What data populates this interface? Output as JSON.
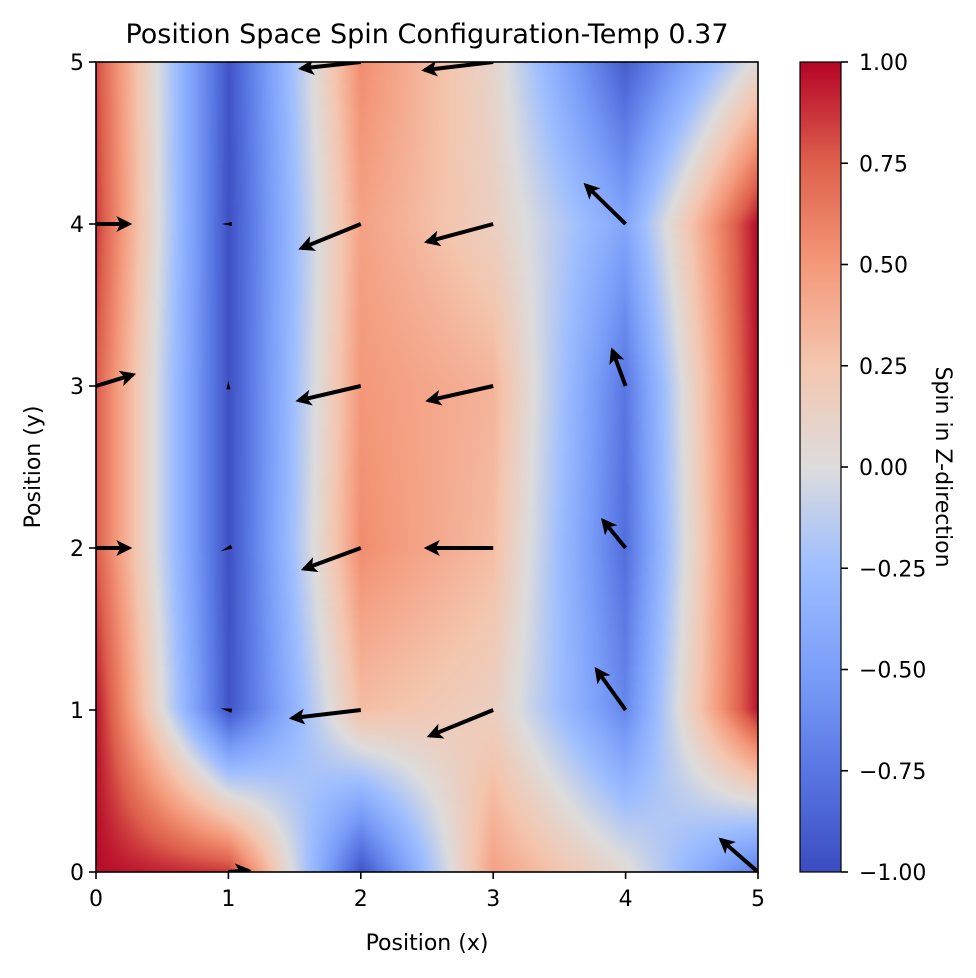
{
  "chart_data": {
    "type": "heatmap",
    "subtype": "heatmap-with-quiver",
    "title": "Position Space Spin Configuration-Temp 0.37",
    "xlabel": "Position (x)",
    "ylabel": "Position (y)",
    "xlim": [
      0,
      5
    ],
    "ylim": [
      0,
      5
    ],
    "xticks": [
      0,
      1,
      2,
      3,
      4,
      5
    ],
    "yticks": [
      0,
      1,
      2,
      3,
      4,
      5
    ],
    "xtick_labels": [
      "0",
      "1",
      "2",
      "3",
      "4",
      "5"
    ],
    "ytick_labels": [
      "0",
      "1",
      "2",
      "3",
      "4",
      "5"
    ],
    "colormap": "coolwarm",
    "interpolation": "bilinear",
    "colorbar": {
      "label": "Spin in Z-direction",
      "range": [
        -1.0,
        1.0
      ],
      "ticks": [
        1.0,
        0.75,
        0.5,
        0.25,
        0.0,
        -0.25,
        -0.5,
        -0.75,
        -1.0
      ],
      "tick_labels": [
        "1.00",
        "0.75",
        "0.50",
        "0.25",
        "0.00",
        "−0.25",
        "−0.50",
        "−0.75",
        "−1.00"
      ],
      "placement": "right"
    },
    "grid_x": [
      0,
      1,
      2,
      3,
      4,
      5
    ],
    "grid_y": [
      0,
      1,
      2,
      3,
      4,
      5
    ],
    "sz_rows_by_y": [
      [
        0.98,
        0.85,
        -0.95,
        0.45,
        0.05,
        -0.7
      ],
      [
        0.95,
        -0.95,
        0.3,
        0.15,
        -0.65,
        0.95
      ],
      [
        0.75,
        -0.97,
        0.55,
        0.3,
        -0.8,
        0.95
      ],
      [
        0.75,
        -0.97,
        0.5,
        0.35,
        -0.75,
        0.97
      ],
      [
        0.85,
        -0.97,
        0.45,
        0.15,
        -0.45,
        0.98
      ],
      [
        0.8,
        -0.95,
        0.55,
        0.1,
        -0.9,
        0.05
      ]
    ],
    "quiver": [
      {
        "x": 0,
        "y": 4,
        "u": 0.25,
        "v": 0.0
      },
      {
        "x": 0,
        "y": 3,
        "u": 0.28,
        "v": 0.07
      },
      {
        "x": 0,
        "y": 2,
        "u": 0.25,
        "v": 0.0
      },
      {
        "x": 1,
        "y": 4,
        "u": -0.05,
        "v": 0.0
      },
      {
        "x": 1,
        "y": 3,
        "u": 0.0,
        "v": 0.03
      },
      {
        "x": 1,
        "y": 2,
        "u": -0.06,
        "v": -0.02
      },
      {
        "x": 1,
        "y": 1,
        "u": -0.06,
        "v": 0.01
      },
      {
        "x": 1,
        "y": 0,
        "u": 0.15,
        "v": 0.01
      },
      {
        "x": 2,
        "y": 5,
        "u": -0.45,
        "v": -0.04
      },
      {
        "x": 2,
        "y": 4,
        "u": -0.45,
        "v": -0.15
      },
      {
        "x": 2,
        "y": 3,
        "u": -0.47,
        "v": -0.09
      },
      {
        "x": 2,
        "y": 2,
        "u": -0.43,
        "v": -0.13
      },
      {
        "x": 2,
        "y": 1,
        "u": -0.52,
        "v": -0.05
      },
      {
        "x": 3,
        "y": 5,
        "u": -0.52,
        "v": -0.05
      },
      {
        "x": 3,
        "y": 4,
        "u": -0.5,
        "v": -0.11
      },
      {
        "x": 3,
        "y": 3,
        "u": -0.49,
        "v": -0.09
      },
      {
        "x": 3,
        "y": 2,
        "u": -0.5,
        "v": 0.0
      },
      {
        "x": 3,
        "y": 1,
        "u": -0.48,
        "v": -0.16
      },
      {
        "x": 4,
        "y": 4,
        "u": -0.3,
        "v": 0.24
      },
      {
        "x": 4,
        "y": 3,
        "u": -0.1,
        "v": 0.22
      },
      {
        "x": 4,
        "y": 2,
        "u": -0.17,
        "v": 0.17
      },
      {
        "x": 4,
        "y": 1,
        "u": -0.22,
        "v": 0.25
      },
      {
        "x": 5,
        "y": 0,
        "u": -0.28,
        "v": 0.2
      }
    ]
  }
}
